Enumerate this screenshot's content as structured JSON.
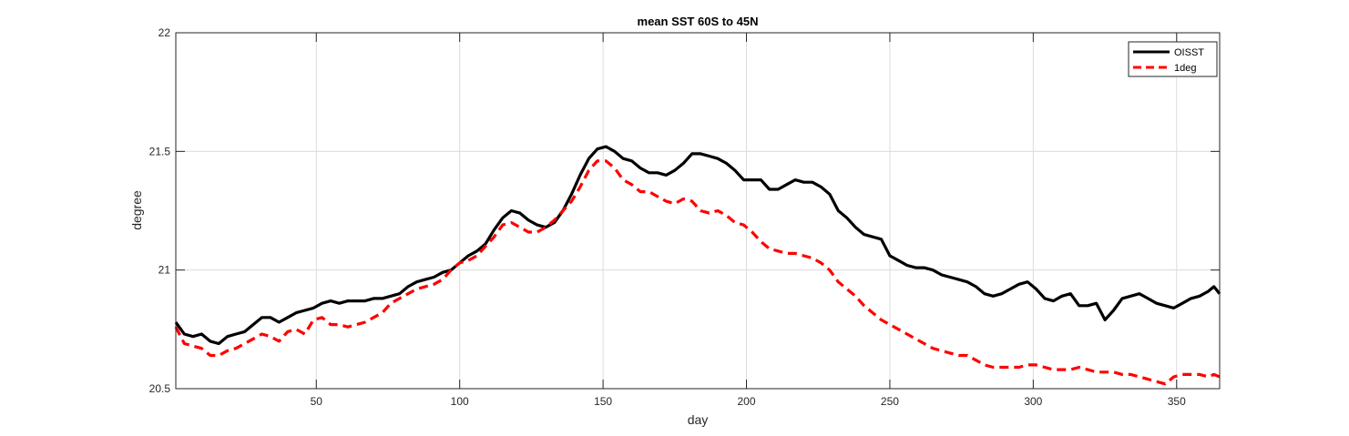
{
  "chart_data": {
    "type": "line",
    "title": "mean SST 60S to 45N",
    "xlabel": "day",
    "ylabel": "degree",
    "xlim": [
      1,
      365
    ],
    "ylim": [
      20.5,
      22
    ],
    "xticks": [
      50,
      100,
      150,
      200,
      250,
      300,
      350
    ],
    "yticks": [
      20.5,
      21,
      21.5,
      22
    ],
    "xtick_labels": [
      "50",
      "100",
      "150",
      "200",
      "250",
      "300",
      "350"
    ],
    "ytick_labels": [
      "20.5",
      "21",
      "21.5",
      "22"
    ],
    "grid": true,
    "legend_position": "top-right",
    "series": [
      {
        "name": "OISST",
        "color": "#000000",
        "style": "solid",
        "x": [
          1,
          4,
          7,
          10,
          13,
          16,
          19,
          22,
          25,
          28,
          31,
          34,
          37,
          40,
          43,
          46,
          49,
          52,
          55,
          58,
          61,
          64,
          67,
          70,
          73,
          76,
          79,
          82,
          85,
          88,
          91,
          94,
          97,
          100,
          103,
          106,
          109,
          112,
          115,
          118,
          121,
          124,
          127,
          130,
          133,
          136,
          139,
          142,
          145,
          148,
          151,
          154,
          157,
          160,
          163,
          166,
          169,
          172,
          175,
          178,
          181,
          184,
          187,
          190,
          193,
          196,
          199,
          202,
          205,
          208,
          211,
          214,
          217,
          220,
          223,
          226,
          229,
          232,
          235,
          238,
          241,
          244,
          247,
          250,
          253,
          256,
          259,
          262,
          265,
          268,
          271,
          274,
          277,
          280,
          283,
          286,
          289,
          292,
          295,
          298,
          301,
          304,
          307,
          310,
          313,
          316,
          319,
          322,
          325,
          328,
          331,
          334,
          337,
          340,
          343,
          346,
          349,
          352,
          355,
          358,
          361,
          363,
          365
        ],
        "y": [
          20.78,
          20.73,
          20.72,
          20.73,
          20.7,
          20.69,
          20.72,
          20.73,
          20.74,
          20.77,
          20.8,
          20.8,
          20.78,
          20.8,
          20.82,
          20.83,
          20.84,
          20.86,
          20.87,
          20.86,
          20.87,
          20.87,
          20.87,
          20.88,
          20.88,
          20.89,
          20.9,
          20.93,
          20.95,
          20.96,
          20.97,
          20.99,
          21.0,
          21.03,
          21.06,
          21.08,
          21.11,
          21.17,
          21.22,
          21.25,
          21.24,
          21.21,
          21.19,
          21.18,
          21.2,
          21.25,
          21.32,
          21.4,
          21.47,
          21.51,
          21.52,
          21.5,
          21.47,
          21.46,
          21.43,
          21.41,
          21.41,
          21.4,
          21.42,
          21.45,
          21.49,
          21.49,
          21.48,
          21.47,
          21.45,
          21.42,
          21.38,
          21.38,
          21.38,
          21.34,
          21.34,
          21.36,
          21.38,
          21.37,
          21.37,
          21.35,
          21.32,
          21.25,
          21.22,
          21.18,
          21.15,
          21.14,
          21.13,
          21.06,
          21.04,
          21.02,
          21.01,
          21.01,
          21.0,
          20.98,
          20.97,
          20.96,
          20.95,
          20.93,
          20.9,
          20.89,
          20.9,
          20.92,
          20.94,
          20.95,
          20.92,
          20.88,
          20.87,
          20.89,
          20.9,
          20.85,
          20.85,
          20.86,
          20.79,
          20.83,
          20.88,
          20.89,
          20.9,
          20.88,
          20.86,
          20.85,
          20.84,
          20.86,
          20.88,
          20.89,
          20.91,
          20.93,
          20.9
        ]
      },
      {
        "name": "1deg",
        "color": "#ff0000",
        "style": "dashed",
        "x": [
          1,
          4,
          7,
          10,
          13,
          16,
          19,
          22,
          25,
          28,
          31,
          34,
          37,
          40,
          43,
          46,
          49,
          52,
          55,
          58,
          61,
          64,
          67,
          70,
          73,
          76,
          79,
          82,
          85,
          88,
          91,
          94,
          97,
          100,
          103,
          106,
          109,
          112,
          115,
          118,
          121,
          124,
          127,
          130,
          133,
          136,
          139,
          142,
          145,
          148,
          151,
          154,
          157,
          160,
          163,
          166,
          169,
          172,
          175,
          178,
          181,
          184,
          187,
          190,
          193,
          196,
          199,
          202,
          205,
          208,
          211,
          214,
          217,
          220,
          223,
          226,
          229,
          232,
          235,
          238,
          241,
          244,
          247,
          250,
          253,
          256,
          259,
          262,
          265,
          268,
          271,
          274,
          277,
          280,
          283,
          286,
          289,
          292,
          295,
          298,
          301,
          304,
          307,
          310,
          313,
          316,
          319,
          322,
          325,
          328,
          331,
          334,
          337,
          340,
          343,
          346,
          349,
          352,
          355,
          358,
          361,
          363,
          365
        ],
        "y": [
          20.76,
          20.69,
          20.68,
          20.67,
          20.64,
          20.64,
          20.66,
          20.67,
          20.69,
          20.71,
          20.73,
          20.72,
          20.7,
          20.74,
          20.75,
          20.73,
          20.79,
          20.8,
          20.77,
          20.77,
          20.76,
          20.77,
          20.78,
          20.8,
          20.82,
          20.86,
          20.88,
          20.9,
          20.92,
          20.93,
          20.94,
          20.96,
          21.0,
          21.03,
          21.04,
          21.06,
          21.1,
          21.14,
          21.19,
          21.2,
          21.18,
          21.16,
          21.16,
          21.18,
          21.21,
          21.25,
          21.29,
          21.35,
          21.42,
          21.46,
          21.46,
          21.43,
          21.38,
          21.36,
          21.33,
          21.33,
          21.31,
          21.29,
          21.28,
          21.3,
          21.29,
          21.25,
          21.24,
          21.25,
          21.23,
          21.2,
          21.19,
          21.16,
          21.12,
          21.09,
          21.08,
          21.07,
          21.07,
          21.06,
          21.05,
          21.03,
          21.0,
          20.95,
          20.92,
          20.89,
          20.85,
          20.82,
          20.79,
          20.77,
          20.75,
          20.73,
          20.71,
          20.69,
          20.67,
          20.66,
          20.65,
          20.64,
          20.64,
          20.62,
          20.6,
          20.59,
          20.59,
          20.59,
          20.59,
          20.6,
          20.6,
          20.59,
          20.58,
          20.58,
          20.58,
          20.59,
          20.58,
          20.57,
          20.57,
          20.57,
          20.56,
          20.56,
          20.55,
          20.54,
          20.53,
          20.52,
          20.55,
          20.56,
          20.56,
          20.56,
          20.55,
          20.56,
          20.55
        ]
      }
    ]
  }
}
